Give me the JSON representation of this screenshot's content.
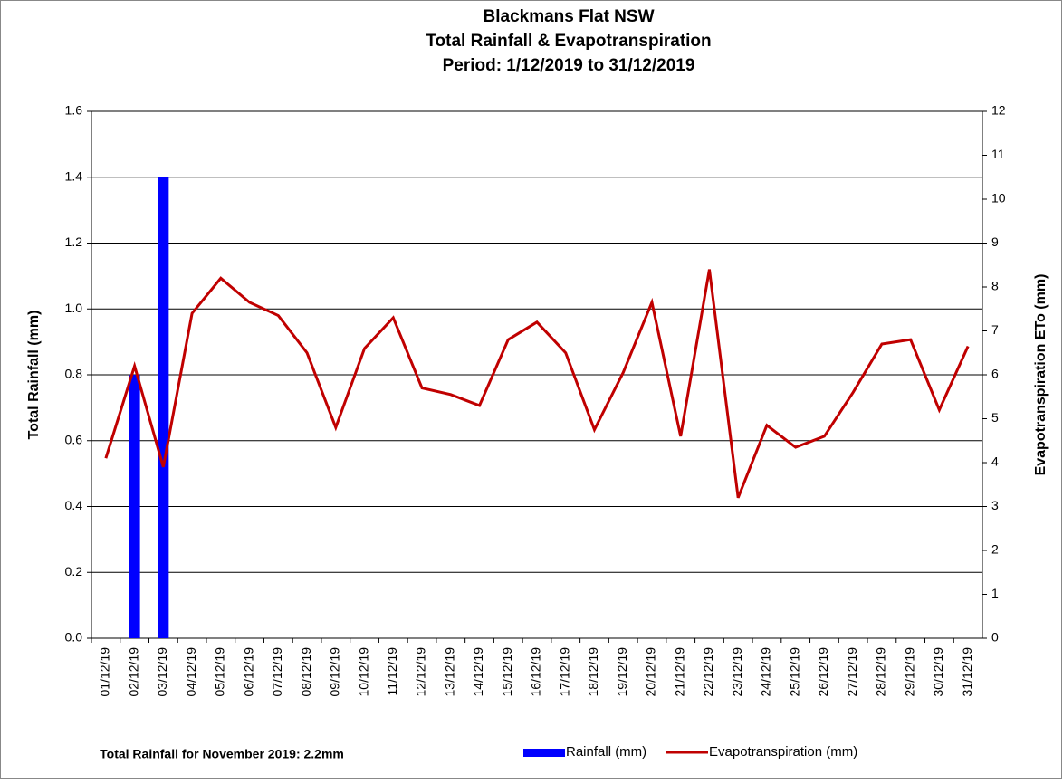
{
  "chart_data": {
    "type": "bar_line",
    "title": [
      "Blackmans Flat NSW",
      "Total Rainfall & Evapotranspiration",
      "Period: 1/12/2019 to 31/12/2019"
    ],
    "ylabel": "Total Rainfall (mm)",
    "y2label": "Evapotranspiration ETo (mm)",
    "annotation": "Total Rainfall for November 2019: 2.2mm",
    "categories": [
      "01/12/19",
      "02/12/19",
      "03/12/19",
      "04/12/19",
      "05/12/19",
      "06/12/19",
      "07/12/19",
      "08/12/19",
      "09/12/19",
      "10/12/19",
      "11/12/19",
      "12/12/19",
      "13/12/19",
      "14/12/19",
      "15/12/19",
      "16/12/19",
      "17/12/19",
      "18/12/19",
      "19/12/19",
      "20/12/19",
      "21/12/19",
      "22/12/19",
      "23/12/19",
      "24/12/19",
      "25/12/19",
      "26/12/19",
      "27/12/19",
      "28/12/19",
      "29/12/19",
      "30/12/19",
      "31/12/19"
    ],
    "series": [
      {
        "name": "Rainfall (mm)",
        "type": "bar",
        "color": "#0000ff",
        "axis": "y",
        "values": [
          0,
          0.8,
          1.4,
          0,
          0,
          0,
          0,
          0,
          0,
          0,
          0,
          0,
          0,
          0,
          0,
          0,
          0,
          0,
          0,
          0,
          0,
          0,
          0,
          0,
          0,
          0,
          0,
          0,
          0,
          0,
          0
        ]
      },
      {
        "name": "Evapotranspiration (mm)",
        "type": "line",
        "color": "#c00000",
        "axis": "y2",
        "values": [
          4.1,
          6.2,
          3.9,
          7.4,
          8.2,
          7.65,
          7.35,
          6.5,
          4.8,
          6.6,
          7.3,
          5.7,
          5.55,
          5.3,
          6.8,
          7.2,
          6.5,
          4.75,
          6.05,
          7.65,
          4.6,
          8.4,
          3.2,
          4.85,
          4.35,
          4.6,
          5.6,
          6.7,
          6.8,
          5.2,
          6.65
        ]
      }
    ],
    "ylim": [
      0,
      1.6
    ],
    "yticks": [
      {
        "value": 0,
        "label": "0.0"
      },
      0.2,
      0.4,
      0.6,
      0.8,
      {
        "value": 1,
        "label": "1.0"
      },
      1.2,
      1.4,
      1.6
    ],
    "y2lim": [
      0,
      12
    ],
    "y2ticks": [
      0,
      1,
      2,
      3,
      4,
      5,
      6,
      7,
      8,
      9,
      10,
      11,
      12
    ],
    "grid": true,
    "legend": "bottom"
  }
}
